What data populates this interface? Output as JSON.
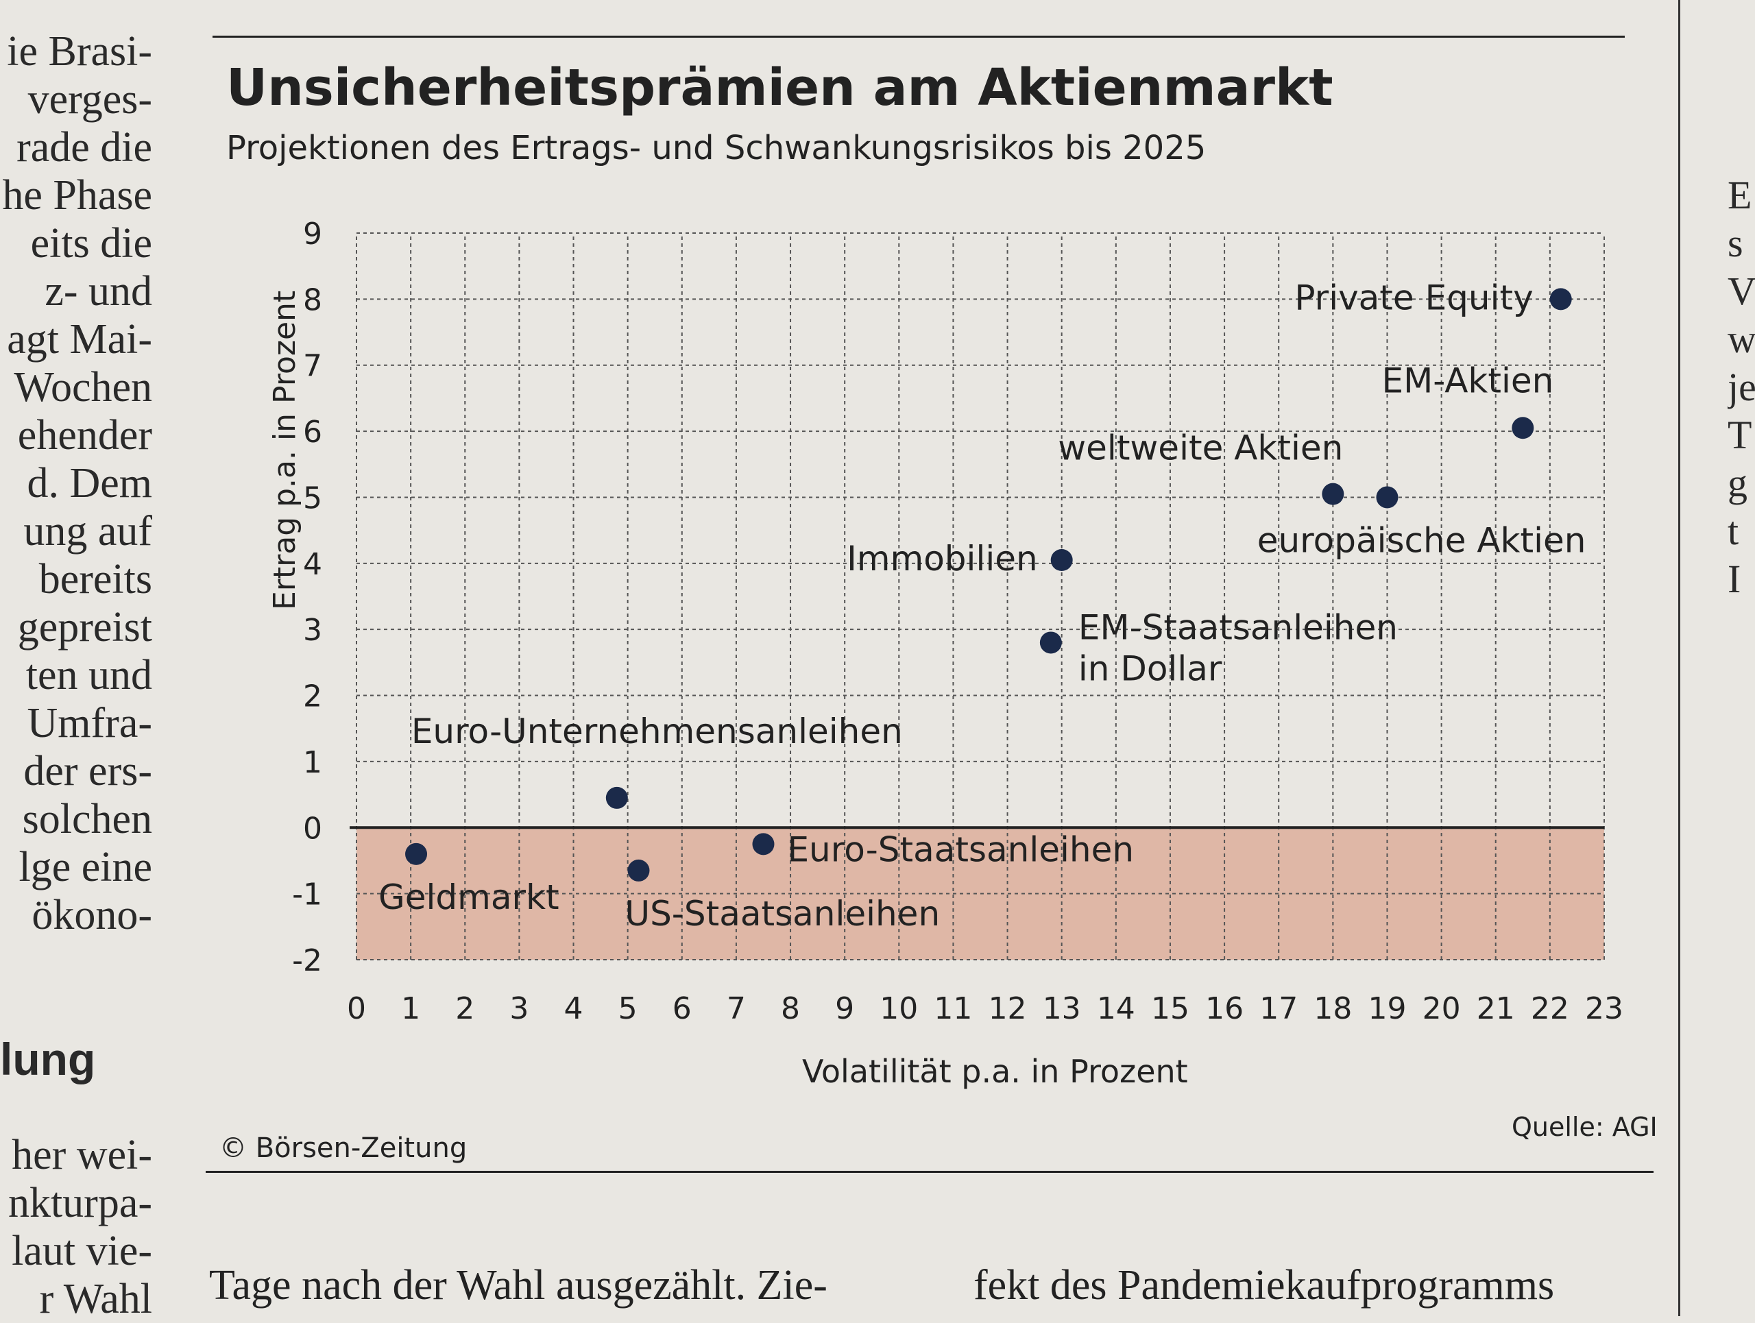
{
  "article": {
    "left_column": [
      "ie Brasi-",
      "verges-",
      "rade die",
      "he Phase",
      "eits die",
      "z- und",
      "agt Mai-",
      "Wochen",
      "ehender",
      "d. Dem",
      "ung auf",
      "bereits",
      "gepreist",
      "ten und",
      "Umfra-",
      "der ers-",
      "solchen",
      "lge eine",
      "ökono-"
    ],
    "left_heading": "lung",
    "left_column_after": [
      "her wei-",
      "nkturpa-",
      "laut vie-",
      "r Wahl"
    ],
    "right_column_top": "..",
    "right_column": [
      "E",
      "s",
      "V",
      "w",
      "je",
      "T",
      "g",
      "t",
      "I"
    ],
    "bottom_left": "Tage nach der Wahl ausgezählt. Zie-",
    "bottom_right": "fekt des Pandemiekaufprogramms"
  },
  "graphic": {
    "copyright": "© Börsen-Zeitung",
    "source": "Quelle: AGI"
  },
  "colors": {
    "negative_band": "#dfb7a6",
    "point": "#1b2a4a",
    "grid": "#555555",
    "paper": "#e9e7e2"
  },
  "chart_data": {
    "type": "scatter",
    "title": "Unsicherheitsprämien am Aktienmarkt",
    "subtitle": "Projektionen des Ertrags- und Schwankungsrisikos bis 2025",
    "xlabel": "Volatilität p.a. in Prozent",
    "ylabel": "Ertrag p.a. in Prozent",
    "xlim": [
      0,
      23
    ],
    "ylim": [
      -2,
      9
    ],
    "xticks": [
      "0",
      "1",
      "2",
      "3",
      "4",
      "5",
      "6",
      "7",
      "8",
      "9",
      "10",
      "11",
      "12",
      "13",
      "14",
      "15",
      "16",
      "17",
      "18",
      "19",
      "20",
      "21",
      "22",
      "23"
    ],
    "yticks": [
      "-2",
      "-1",
      "0",
      "1",
      "2",
      "3",
      "4",
      "5",
      "6",
      "7",
      "8",
      "9"
    ],
    "grid": true,
    "shaded_region": {
      "y_from": -2,
      "y_to": 0
    },
    "points": [
      {
        "label": "Geldmarkt",
        "x": 1.1,
        "y": -0.4
      },
      {
        "label": "Euro-Unternehmensanleihen",
        "x": 4.8,
        "y": 0.45
      },
      {
        "label": "US-Staatsanleihen",
        "x": 5.2,
        "y": -0.65
      },
      {
        "label": "Euro-Staatsanleihen",
        "x": 7.5,
        "y": -0.25
      },
      {
        "label": "EM-Staatsanleihen in Dollar",
        "x": 12.8,
        "y": 2.8
      },
      {
        "label": "Immobilien",
        "x": 13.0,
        "y": 4.05
      },
      {
        "label": "weltweite Aktien",
        "x": 18.0,
        "y": 5.05
      },
      {
        "label": "europäische Aktien",
        "x": 19.0,
        "y": 5.0
      },
      {
        "label": "EM-Aktien",
        "x": 21.5,
        "y": 6.05
      },
      {
        "label": "Private Equity",
        "x": 22.2,
        "y": 8.0
      }
    ]
  }
}
